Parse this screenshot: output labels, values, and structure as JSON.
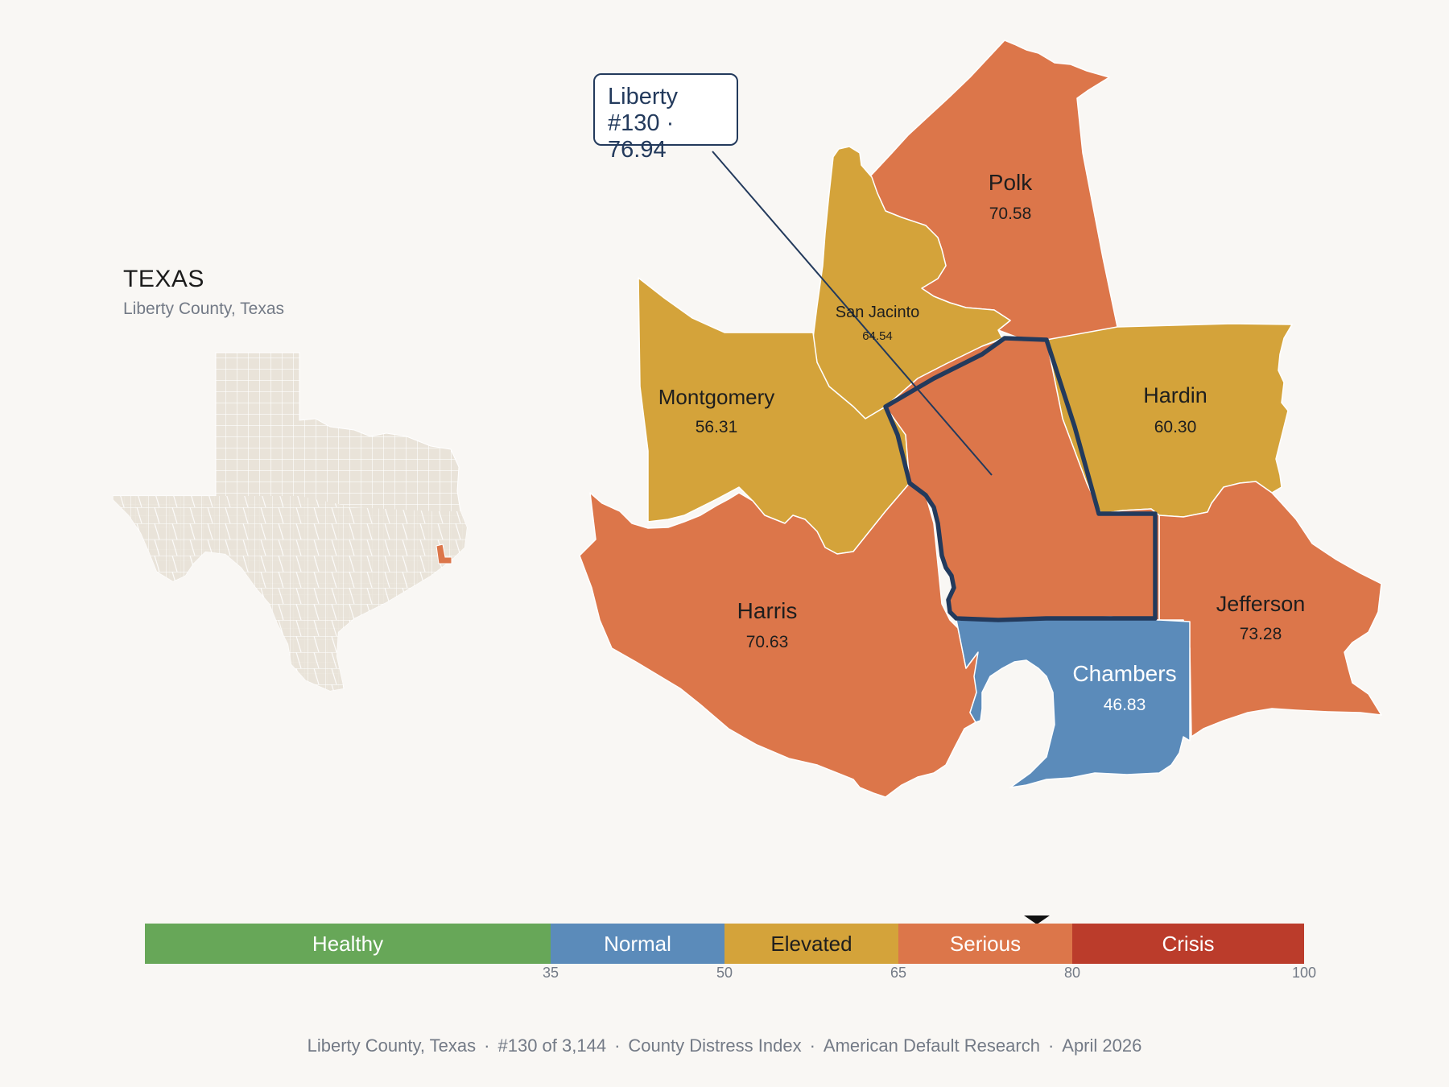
{
  "locator": {
    "title": "TEXAS",
    "subtitle": "Liberty County, Texas"
  },
  "callout": {
    "line1": "Liberty",
    "line2": "#130 · 76.94"
  },
  "counties": [
    {
      "name": "Polk",
      "value": "70.58",
      "color": "#dc764a"
    },
    {
      "name": "San Jacinto",
      "value": "64.54",
      "color": "#d4a33a"
    },
    {
      "name": "Montgomery",
      "value": "56.31",
      "color": "#d4a33a"
    },
    {
      "name": "Hardin",
      "value": "60.30",
      "color": "#d4a33a"
    },
    {
      "name": "Harris",
      "value": "70.63",
      "color": "#dc764a"
    },
    {
      "name": "Jefferson",
      "value": "73.28",
      "color": "#dc764a"
    },
    {
      "name": "Chambers",
      "value": "46.83",
      "color": "#5b8bba"
    },
    {
      "name": "Liberty",
      "value": "76.94",
      "color": "#dc764a"
    }
  ],
  "legend": {
    "segments": [
      {
        "label": "Healthy",
        "color": "#67a758"
      },
      {
        "label": "Normal",
        "color": "#5b8bba"
      },
      {
        "label": "Elevated",
        "color": "#d4a33a"
      },
      {
        "label": "Serious",
        "color": "#dc764a"
      },
      {
        "label": "Crisis",
        "color": "#bb3c2b"
      }
    ],
    "ticks": [
      "35",
      "50",
      "65",
      "80",
      "100"
    ],
    "scale_max": 100,
    "current_value": 76.94
  },
  "footer": {
    "county": "Liberty County, Texas",
    "rank": "#130 of 3,144",
    "index": "County Distress Index",
    "publisher": "American Default Research",
    "date": "April 2026",
    "separator": "·"
  }
}
